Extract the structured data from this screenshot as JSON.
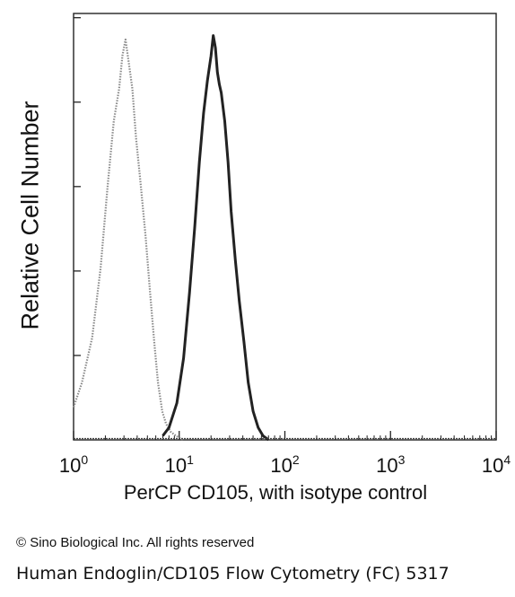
{
  "chart_data": {
    "type": "line",
    "xlabel": "PerCP CD105, with isotype control",
    "ylabel": "Relative Cell Number",
    "x_scale": "log",
    "xlim": [
      1,
      10000
    ],
    "ylim": [
      0,
      1
    ],
    "x_ticks": [
      {
        "base": "10",
        "exp": "0",
        "value": 1
      },
      {
        "base": "10",
        "exp": "1",
        "value": 10
      },
      {
        "base": "10",
        "exp": "2",
        "value": 100
      },
      {
        "base": "10",
        "exp": "3",
        "value": 1000
      },
      {
        "base": "10",
        "exp": "4",
        "value": 10000
      }
    ],
    "grid": false,
    "series": [
      {
        "style": "dotted",
        "color": "#8a8a8a",
        "x": [
          1,
          1.2,
          1.5,
          1.8,
          2.1,
          2.4,
          2.7,
          2.9,
          3.1,
          3.3,
          3.6,
          3.9,
          4.3,
          4.8,
          5.3,
          5.8,
          6.3,
          6.9,
          7.5,
          8.3,
          9.3,
          11
        ],
        "y": [
          0.08,
          0.14,
          0.25,
          0.42,
          0.62,
          0.78,
          0.86,
          0.94,
          0.98,
          0.93,
          0.86,
          0.74,
          0.63,
          0.5,
          0.36,
          0.24,
          0.14,
          0.07,
          0.04,
          0.02,
          0.01,
          0.0
        ]
      },
      {
        "style": "solid",
        "color": "#222222",
        "x": [
          7,
          8,
          9.5,
          11,
          12.5,
          14,
          15.5,
          17,
          18.5,
          20,
          21,
          22,
          23,
          24,
          25,
          27,
          29,
          31,
          34,
          37,
          41,
          45,
          50,
          56,
          62,
          70
        ],
        "y": [
          0.01,
          0.03,
          0.09,
          0.2,
          0.36,
          0.52,
          0.68,
          0.8,
          0.88,
          0.94,
          0.99,
          0.96,
          0.9,
          0.87,
          0.85,
          0.78,
          0.68,
          0.56,
          0.44,
          0.34,
          0.24,
          0.14,
          0.07,
          0.03,
          0.01,
          0.0
        ]
      }
    ]
  },
  "footer": {
    "copyright": "© Sino Biological Inc. All rights reserved",
    "caption": "Human Endoglin/CD105  Flow Cytometry (FC) 5317"
  }
}
